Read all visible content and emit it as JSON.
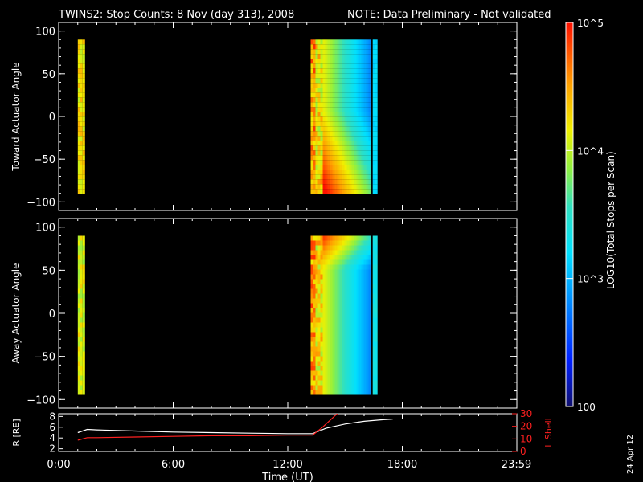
{
  "title": {
    "main": "TWINS2: Stop Counts:  8 Nov (day 313), 2008",
    "note": "NOTE: Data Preliminary - Not validated"
  },
  "colors": {
    "note": "#ff2020",
    "lshell": "#ff2020",
    "radius": "#ffffff",
    "background": "#000000"
  },
  "stamp": "24 Apr 12",
  "chart_data": [
    {
      "type": "heatmap",
      "ylabel": "Toward Actuator Angle",
      "ylim": [
        -110,
        110
      ],
      "yticks": [
        100,
        50,
        0,
        -50,
        -100
      ],
      "xlim": [
        0,
        24
      ],
      "blocks": [
        {
          "start": 1.0,
          "end": 1.3,
          "level": 0.74
        },
        {
          "start": 13.2,
          "end": 16.25,
          "level": 0.58
        },
        {
          "start": 16.45,
          "end": 16.65,
          "level": 0.4
        }
      ]
    },
    {
      "type": "heatmap",
      "ylabel": "Away Actuator Angle",
      "ylim": [
        -110,
        110
      ],
      "yticks": [
        100,
        50,
        0,
        -50,
        -100
      ],
      "xlim": [
        0,
        24
      ],
      "blocks": [
        {
          "start": 1.0,
          "end": 1.3,
          "level": 0.7
        },
        {
          "start": 13.2,
          "end": 16.25,
          "level": 0.5
        },
        {
          "start": 16.45,
          "end": 16.65,
          "level": 0.45
        }
      ]
    },
    {
      "type": "line",
      "ylabel": "R [RE]",
      "y2label": "L Shell",
      "xlabel": "Time (UT)",
      "xlim": [
        0,
        24
      ],
      "ylim": [
        1.5,
        8.5
      ],
      "y2lim": [
        0,
        30
      ],
      "xticks": [
        "0:00",
        "6:00",
        "12:00",
        "18:00",
        "23:59"
      ],
      "xtick_values": [
        0,
        6,
        12,
        18,
        23.98
      ],
      "yticks": [
        2,
        4,
        6,
        8
      ],
      "y2ticks": [
        0,
        10,
        20,
        30
      ],
      "series": [
        {
          "name": "R [RE]",
          "axis": "left",
          "x": [
            1.0,
            1.5,
            2,
            4,
            6,
            8,
            10,
            12,
            13.3,
            14,
            15,
            16,
            17,
            17.5
          ],
          "y": [
            5.0,
            5.6,
            5.5,
            5.3,
            5.1,
            5.0,
            4.9,
            4.8,
            4.8,
            5.8,
            6.6,
            7.1,
            7.4,
            7.5
          ]
        },
        {
          "name": "L Shell",
          "axis": "right",
          "x": [
            1.0,
            1.5,
            2,
            4,
            6,
            8,
            10,
            12,
            13.3,
            13.8,
            14.3,
            14.8
          ],
          "y": [
            9,
            11,
            11,
            11.5,
            12,
            12.5,
            12.5,
            13,
            13,
            19,
            26,
            33
          ]
        }
      ]
    }
  ],
  "colorbar": {
    "label": "LOG10(Total Stops per Scan)",
    "ticks": [
      "10^5",
      "10^4",
      "10^3",
      "100"
    ],
    "tick_values": [
      100000,
      10000,
      1000,
      100
    ],
    "range": [
      100,
      100000
    ]
  }
}
